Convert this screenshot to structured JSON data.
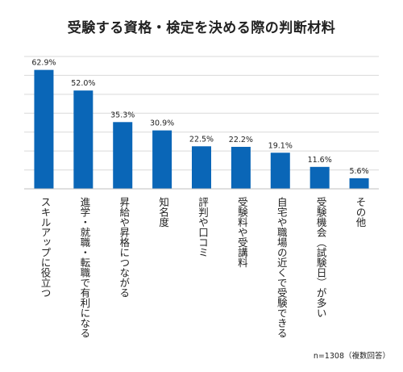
{
  "chart_data": {
    "type": "bar",
    "title": "受験する資格・検定を決める際の判断材料",
    "categories": [
      "スキルアップに役立つ",
      "進学・就職・転職で有利になる",
      "昇給や昇格につながる",
      "知名度",
      "評判や口コミ",
      "受験料や受講料",
      "自宅や職場の近くで受験できる",
      "受験機会（試験日）が多い",
      "その他"
    ],
    "values": [
      62.9,
      52.0,
      35.3,
      30.9,
      22.5,
      22.2,
      19.1,
      11.6,
      5.6
    ],
    "value_labels": [
      "62.9%",
      "52.0%",
      "35.3%",
      "30.9%",
      "22.5%",
      "22.2%",
      "19.1%",
      "11.6%",
      "5.6%"
    ],
    "ylim": [
      0,
      70
    ],
    "grid": true,
    "bar_color": "#0a66b7",
    "grid_color": "#d9d9d9",
    "note": "n=1308（複数回答）"
  }
}
